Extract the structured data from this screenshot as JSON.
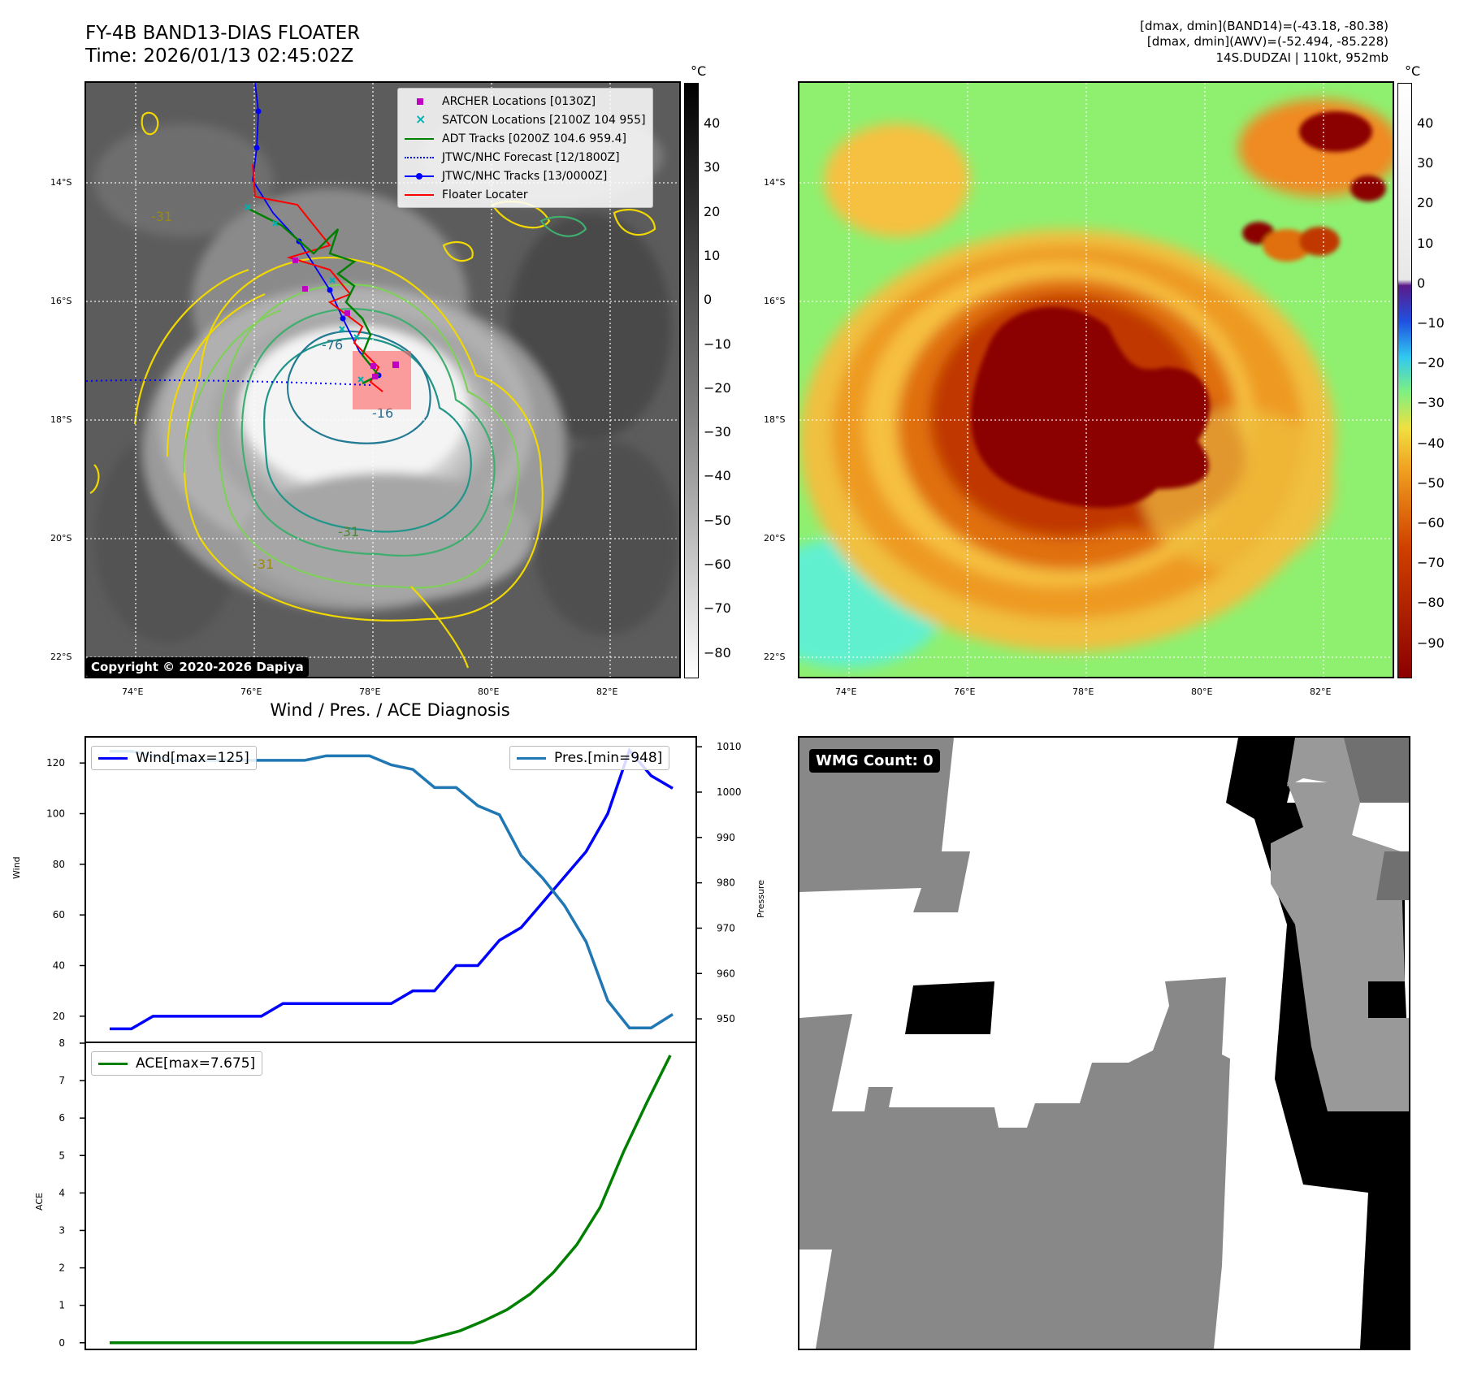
{
  "header": {
    "title_line1": "FY-4B BAND13-DIAS FLOATER",
    "title_line2": "Time: 2026/01/13 02:45:02Z",
    "info_line1": "[dmax, dmin](BAND14)=(-43.18, -80.38)",
    "info_line2": "[dmax, dmin](AWV)=(-52.494, -85.228)",
    "info_line3": "14S.DUDZAI | 110kt, 952mb"
  },
  "ir_panel": {
    "lat_labels": [
      "14°S",
      "16°S",
      "18°S",
      "20°S",
      "22°S"
    ],
    "lon_labels": [
      "74°E",
      "76°E",
      "78°E",
      "80°E",
      "82°E"
    ],
    "copyright": "Copyright © 2020-2026 Dapiya",
    "contour_labels": [
      "-31",
      "-31",
      "-31",
      "-76",
      "-16"
    ],
    "legend": [
      {
        "label": "ARCHER Locations [0130Z]",
        "color": "#c000c0",
        "symbol": "square"
      },
      {
        "label": "SATCON Locations [2100Z 104 955]",
        "color": "#00b0b0",
        "symbol": "x"
      },
      {
        "label": "ADT Tracks [0200Z 104.6 959.4]",
        "color": "#008000",
        "symbol": "line"
      },
      {
        "label": "JTWC/NHC Forecast [12/1800Z]",
        "color": "#0000ff",
        "symbol": "dotted"
      },
      {
        "label": "JTWC/NHC Tracks [13/0000Z]",
        "color": "#0000ff",
        "symbol": "line-dot"
      },
      {
        "label": "Floater Locater",
        "color": "#ff0000",
        "symbol": "line"
      }
    ],
    "colorbar": {
      "unit": "°C",
      "ticks": [
        "40",
        "30",
        "20",
        "10",
        "0",
        "−10",
        "−20",
        "−30",
        "−40",
        "−50",
        "−60",
        "−70",
        "−80"
      ]
    }
  },
  "awv_panel": {
    "lat_labels": [
      "14°S",
      "16°S",
      "18°S",
      "20°S",
      "22°S"
    ],
    "lon_labels": [
      "74°E",
      "76°E",
      "78°E",
      "80°E",
      "82°E"
    ],
    "colorbar": {
      "unit": "°C",
      "ticks": [
        "40",
        "30",
        "20",
        "10",
        "0",
        "−10",
        "−20",
        "−30",
        "−40",
        "−50",
        "−60",
        "−70",
        "−80",
        "−90"
      ]
    }
  },
  "wmg_panel": {
    "label": "WMG Count: 0"
  },
  "chart_data": [
    {
      "type": "line",
      "title": "Wind / Pres. / ACE Diagnosis",
      "ylabel": "Wind",
      "ylabel_right": "Pressure",
      "ylim": [
        10,
        130
      ],
      "ylim_right": [
        945,
        1012
      ],
      "yticks": [
        20,
        40,
        60,
        80,
        100,
        120
      ],
      "yticks_right": [
        950,
        960,
        970,
        980,
        990,
        1000,
        1010
      ],
      "series": [
        {
          "name": "Wind[max=125]",
          "axis": "left",
          "color": "#0000ff",
          "values": [
            15,
            15,
            20,
            20,
            20,
            20,
            20,
            20,
            25,
            25,
            25,
            25,
            25,
            25,
            30,
            30,
            40,
            40,
            50,
            55,
            65,
            75,
            85,
            100,
            125,
            115,
            110
          ]
        },
        {
          "name": "Pres.[min=948]",
          "axis": "right",
          "color": "#1f77b4",
          "values": [
            1009,
            1009,
            1008,
            1007,
            1007,
            1007,
            1007,
            1007,
            1007,
            1007,
            1008,
            1008,
            1008,
            1006,
            1005,
            1001,
            1001,
            997,
            995,
            986,
            981,
            975,
            967,
            954,
            948,
            948,
            951
          ]
        }
      ]
    },
    {
      "type": "line",
      "ylabel": "ACE",
      "ylim": [
        -0.2,
        8
      ],
      "yticks": [
        0,
        1,
        2,
        3,
        4,
        5,
        6,
        7,
        8
      ],
      "series": [
        {
          "name": "ACE[max=7.675]",
          "color": "#008000",
          "values": [
            0,
            0,
            0,
            0,
            0,
            0,
            0,
            0,
            0,
            0,
            0,
            0,
            0,
            0,
            0.15,
            0.32,
            0.58,
            0.88,
            1.3,
            1.88,
            2.62,
            3.62,
            5.1,
            6.42,
            7.675
          ]
        }
      ]
    }
  ]
}
